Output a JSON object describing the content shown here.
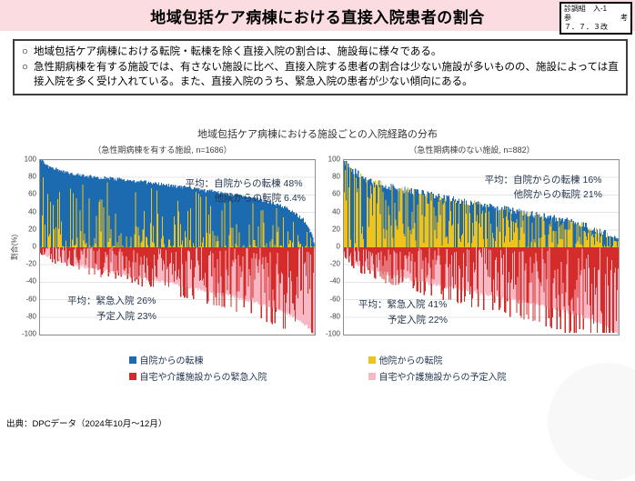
{
  "header": {
    "title": "地域包括ケア病棟における直接入院患者の割合",
    "ref_box": {
      "line1": "診調組　入-1",
      "line2_left": "参",
      "line2_right": "考",
      "line3": "７．７．３改"
    }
  },
  "summary_box": {
    "marker": "○",
    "bullets": [
      "地域包括ケア病棟における転院・転棟を除く直接入院の割合は、施設毎に様々である。",
      "急性期病棟を有する施設では、有さない施設に比べ、直接入院する患者の割合は少ない施設が多いものの、施設によっては直接入院を多く受け入れている。また、直接入院のうち、緊急入院の患者が少ない傾向にある。"
    ]
  },
  "figure": {
    "title": "地域包括ケア病棟における施設ごとの入院経路の分布",
    "source": "出典：DPCデータ（2024年10月～12月）"
  },
  "legend": {
    "items": [
      {
        "label": "自院からの転棟",
        "color": "#1C6BB0"
      },
      {
        "label": "他院からの転院",
        "color": "#EFC319"
      },
      {
        "label": "自宅や介護施設からの緊急入院",
        "color": "#D42B2B"
      },
      {
        "label": "自宅や介護施設からの予定入院",
        "color": "#F7B7C3"
      }
    ]
  },
  "chart_data": [
    {
      "type": "bar",
      "variant": "stacked-diverging-distribution",
      "subtitle": "（急性期病棟を有する施設, n=1686）",
      "n_facilities": 1686,
      "ylabel": "割合(%)",
      "xlabel": "",
      "ylim": [
        -100,
        100
      ],
      "yticks": [
        100,
        80,
        60,
        40,
        20,
        0,
        -20,
        -40,
        -60,
        -80,
        -100
      ],
      "grid": true,
      "series": [
        {
          "name": "自院からの転棟",
          "color": "#1C6BB0",
          "mean_pct": 48,
          "side": "positive"
        },
        {
          "name": "他院からの転院",
          "color": "#EFC319",
          "mean_pct": 6.4,
          "side": "positive"
        },
        {
          "name": "自宅や介護施設からの緊急入院",
          "color": "#D42B2B",
          "mean_pct": 26,
          "side": "negative"
        },
        {
          "name": "自宅や介護施設からの予定入院",
          "color": "#F7B7C3",
          "mean_pct": 23,
          "side": "negative"
        }
      ],
      "annotations": {
        "top1": "平均：自院からの転棟 48%",
        "top2": "他院からの転院 6.4%",
        "bottom1": "平均：緊急入院 26%",
        "bottom2": "予定入院 23%"
      },
      "render": {
        "bars": 300,
        "seed": 12345,
        "pos_envelope": [
          [
            0,
            100
          ],
          [
            0.02,
            94
          ],
          [
            0.08,
            86
          ],
          [
            0.18,
            81
          ],
          [
            0.35,
            76
          ],
          [
            0.5,
            70
          ],
          [
            0.65,
            63
          ],
          [
            0.8,
            55
          ],
          [
            0.9,
            45
          ],
          [
            0.96,
            32
          ],
          [
            0.99,
            14
          ],
          [
            1,
            3
          ]
        ],
        "neg_envelope": [
          [
            0,
            -6
          ],
          [
            0.05,
            -14
          ],
          [
            0.15,
            -22
          ],
          [
            0.3,
            -31
          ],
          [
            0.5,
            -43
          ],
          [
            0.7,
            -56
          ],
          [
            0.85,
            -69
          ],
          [
            0.93,
            -81
          ],
          [
            0.98,
            -92
          ],
          [
            1,
            -100
          ]
        ],
        "yellow_frac": {
          "pow": 5,
          "scale": 0.95
        },
        "red_frac": {
          "pow": 1.5,
          "scale": 1.5,
          "max": 1.25
        },
        "jitter_pos": 2,
        "jitter_neg": 2
      }
    },
    {
      "type": "bar",
      "variant": "stacked-diverging-distribution",
      "subtitle": "（急性期病棟のない施設, n=882）",
      "n_facilities": 882,
      "ylabel": "割合(%)",
      "xlabel": "",
      "ylim": [
        -100,
        100
      ],
      "yticks": [
        100,
        80,
        60,
        40,
        20,
        0,
        -20,
        -40,
        -60,
        -80,
        -100
      ],
      "grid": true,
      "series": [
        {
          "name": "自院からの転棟",
          "color": "#1C6BB0",
          "mean_pct": 16,
          "side": "positive"
        },
        {
          "name": "他院からの転院",
          "color": "#EFC319",
          "mean_pct": 21,
          "side": "positive"
        },
        {
          "name": "自宅や介護施設からの緊急入院",
          "color": "#D42B2B",
          "mean_pct": 41,
          "side": "negative"
        },
        {
          "name": "自宅や介護施設からの予定入院",
          "color": "#F7B7C3",
          "mean_pct": 22,
          "side": "negative"
        }
      ],
      "annotations": {
        "top1": "平均：自院からの転棟 16%",
        "top2": "他院からの転院 21%",
        "bottom1": "平均：緊急入院 41%",
        "bottom2": "予定入院 22%"
      },
      "render": {
        "bars": 300,
        "seed": 67890,
        "pos_envelope": [
          [
            0,
            100
          ],
          [
            0.02,
            90
          ],
          [
            0.08,
            78
          ],
          [
            0.18,
            68
          ],
          [
            0.35,
            58
          ],
          [
            0.5,
            49
          ],
          [
            0.65,
            40
          ],
          [
            0.8,
            31
          ],
          [
            0.9,
            23
          ],
          [
            0.96,
            15
          ],
          [
            1,
            6
          ]
        ],
        "neg_envelope": [
          [
            0,
            -10
          ],
          [
            0.05,
            -20
          ],
          [
            0.15,
            -30
          ],
          [
            0.3,
            -41
          ],
          [
            0.5,
            -53
          ],
          [
            0.7,
            -65
          ],
          [
            0.85,
            -77
          ],
          [
            0.93,
            -87
          ],
          [
            0.98,
            -95
          ],
          [
            1,
            -100
          ]
        ],
        "yellow_frac": {
          "scale": 1.5,
          "offset": -0.25
        },
        "red_frac": {
          "pow": 1.3,
          "scale": 1.7,
          "max": 1.3
        },
        "jitter_pos": 4,
        "jitter_neg": 2
      }
    }
  ]
}
